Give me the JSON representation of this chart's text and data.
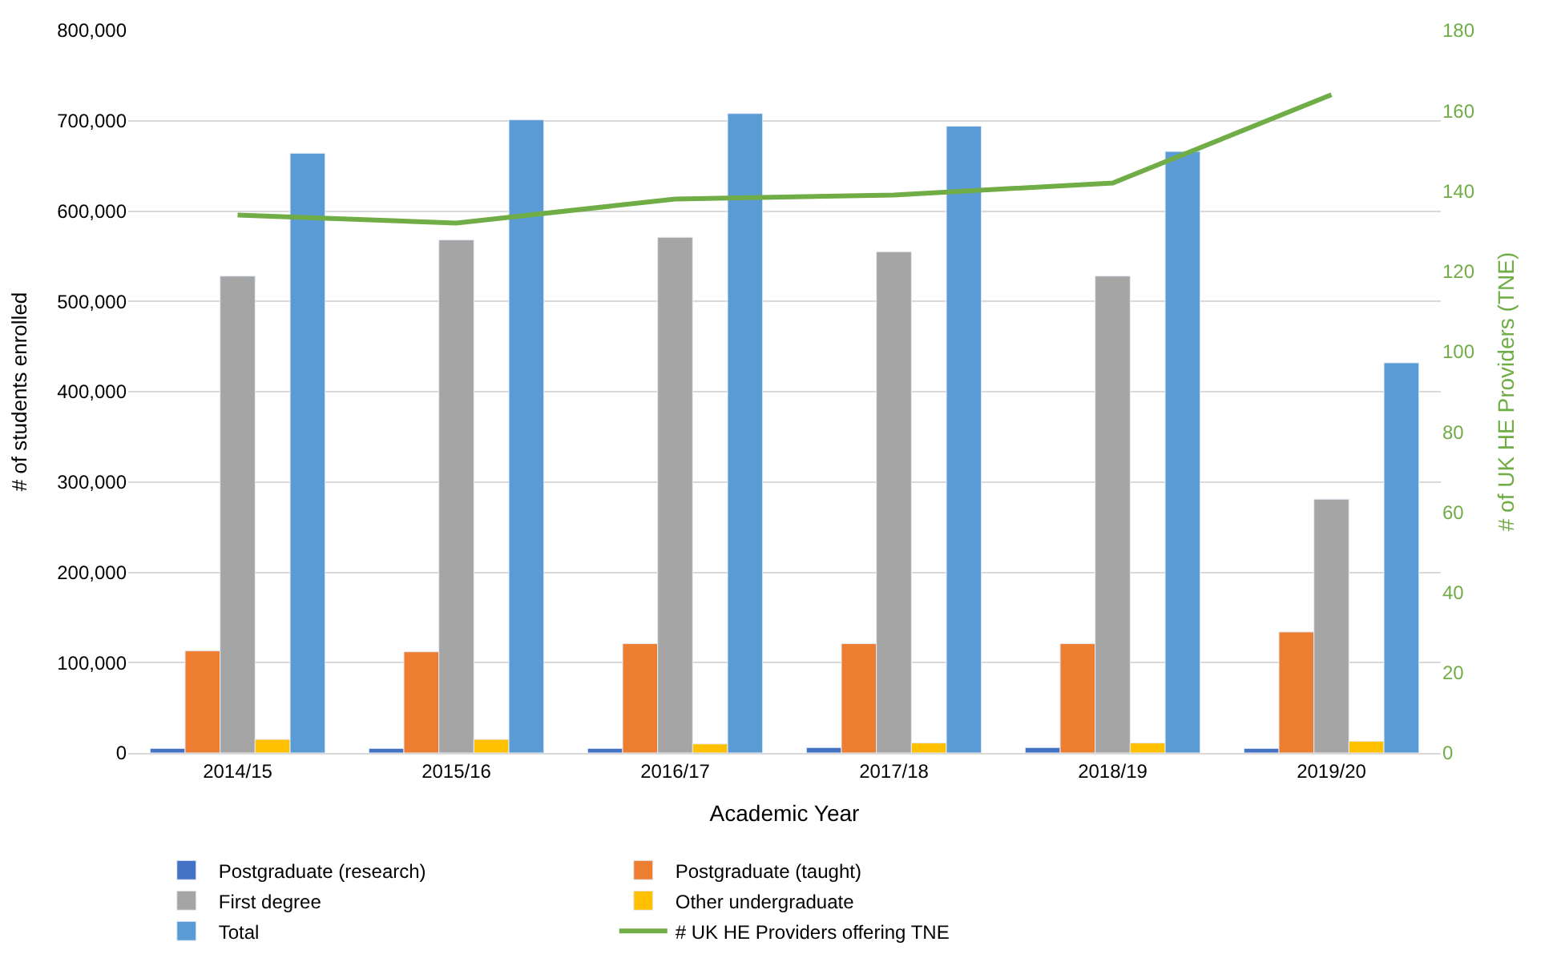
{
  "chart_data": {
    "type": "bar",
    "xlabel": "Academic Year",
    "ylabel": "# of students enrolled",
    "y2label": "# of UK HE Providers (TNE)",
    "categories": [
      "2014/15",
      "2015/16",
      "2016/17",
      "2017/18",
      "2018/19",
      "2019/20"
    ],
    "series": [
      {
        "name": "Postgraduate (research)",
        "color": "#4472c4",
        "values": [
          5000,
          5000,
          5000,
          6000,
          6000,
          5000
        ]
      },
      {
        "name": "Postgraduate (taught)",
        "color": "#ed7d31",
        "values": [
          113000,
          112000,
          121000,
          121000,
          121000,
          134000
        ]
      },
      {
        "name": "First degree",
        "color": "#a5a5a5",
        "values": [
          528000,
          568000,
          571000,
          555000,
          528000,
          281000
        ]
      },
      {
        "name": "Other undergraduate",
        "color": "#ffc000",
        "values": [
          15000,
          15000,
          10000,
          11000,
          11000,
          13000
        ]
      },
      {
        "name": "Total",
        "color": "#5b9bd5",
        "values": [
          664000,
          701000,
          708000,
          694000,
          666000,
          432000
        ]
      },
      {
        "name": "# UK HE Providers offering TNE",
        "type": "line",
        "axis": "y2",
        "color": "#70ad47",
        "values": [
          134,
          132,
          138,
          139,
          142,
          164
        ]
      }
    ],
    "ylim": [
      0,
      800000
    ],
    "yticks": [
      {
        "value": 0,
        "label": "0"
      },
      {
        "value": 100000,
        "label": "100,000"
      },
      {
        "value": 200000,
        "label": "200,000"
      },
      {
        "value": 300000,
        "label": "300,000"
      },
      {
        "value": 400000,
        "label": "400,000"
      },
      {
        "value": 500000,
        "label": "500,000"
      },
      {
        "value": 600000,
        "label": "600,000"
      },
      {
        "value": 700000,
        "label": "700,000"
      },
      {
        "value": 800000,
        "label": "800,000"
      }
    ],
    "y2lim": [
      0,
      180
    ],
    "y2ticks": [
      0,
      20,
      40,
      60,
      80,
      100,
      120,
      140,
      160,
      180
    ],
    "grid": "y",
    "legend": "bottom",
    "marker": "none"
  }
}
